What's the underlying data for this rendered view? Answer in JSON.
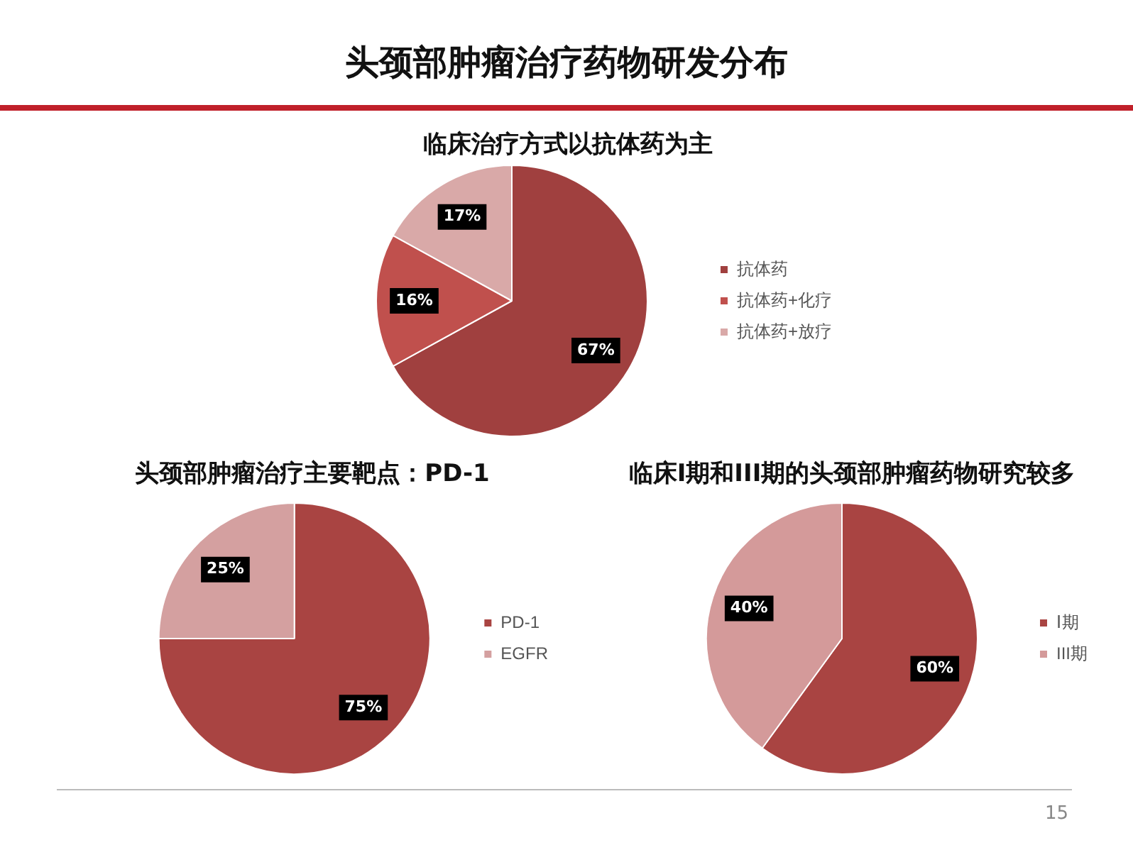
{
  "chart_data": [
    {
      "type": "pie",
      "title": "临床治疗方式以抗体药为主",
      "categories": [
        "抗体药",
        "抗体药+化疗",
        "抗体药+放疗"
      ],
      "values": [
        67,
        16,
        17
      ],
      "colors": [
        "#a0403f",
        "#c0504d",
        "#d9a9a8"
      ],
      "value_labels": [
        "67%",
        "16%",
        "17%"
      ],
      "legend": "right",
      "annotations": [
        "头颈部肿瘤治疗药物研发分布",
        "15"
      ]
    },
    {
      "type": "pie",
      "title": "头颈部肿瘤治疗主要靶点：PD-1",
      "categories": [
        "PD-1",
        "EGFR"
      ],
      "values": [
        75,
        25
      ],
      "colors": [
        "#a94442",
        "#d4a0a0"
      ],
      "value_labels": [
        "75%",
        "25%"
      ],
      "legend": "right"
    },
    {
      "type": "pie",
      "title": "临床I期和III期的头颈部肿瘤药物研究较多",
      "categories": [
        "Ⅰ期",
        "III期"
      ],
      "values": [
        60,
        40
      ],
      "colors": [
        "#a94442",
        "#d49a9a"
      ],
      "value_labels": [
        "60%",
        "40%"
      ],
      "legend": "right"
    }
  ]
}
